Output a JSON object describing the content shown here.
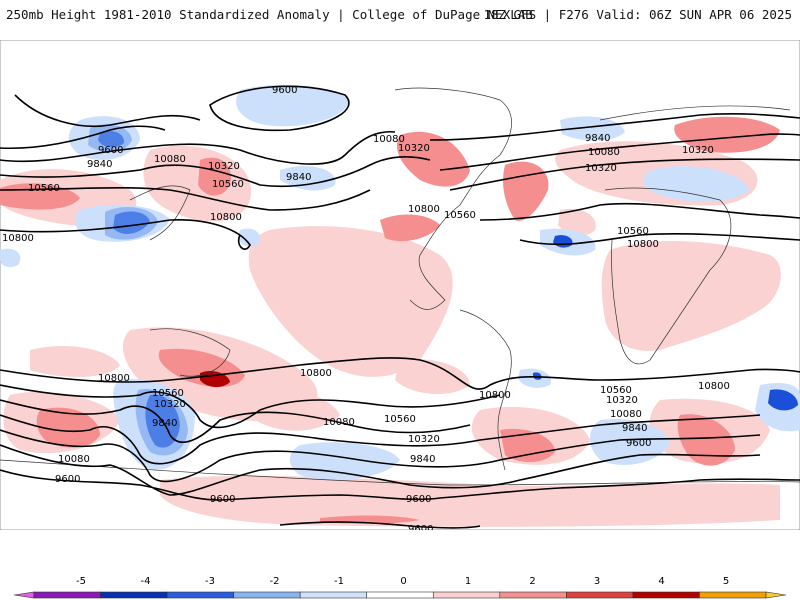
{
  "header": {
    "title_left": "250mb Height 1981-2010 Standardized Anomaly | College of DuPage NEXLAB",
    "title_right": "18Z GFS | F276 Valid: 06Z SUN APR 06 2025"
  },
  "contour_labels": [
    "9600",
    "9840",
    "10080",
    "10320",
    "10560",
    "10800"
  ],
  "colorbar": {
    "ticks": [
      "-5",
      "-4",
      "-3",
      "-2",
      "-1",
      "0",
      "1",
      "2",
      "3",
      "4",
      "5"
    ],
    "colors": [
      "#e060e0",
      "#8a1ab8",
      "#0a2fb0",
      "#2a5ee0",
      "#8ab4f0",
      "#cfe2fb",
      "#ffffff",
      "#fbd0d0",
      "#f39090",
      "#e04040",
      "#b00000",
      "#f0a000",
      "#f8c830"
    ]
  },
  "colors": {
    "strong_positive": "#e43a3a",
    "moderate_positive": "#f58f8f",
    "weak_positive": "#fbd2d2",
    "dark_positive": "#b00000",
    "weak_negative": "#cde0fb",
    "moderate_negative": "#6f9ff0",
    "strong_negative": "#1a4fd8"
  }
}
